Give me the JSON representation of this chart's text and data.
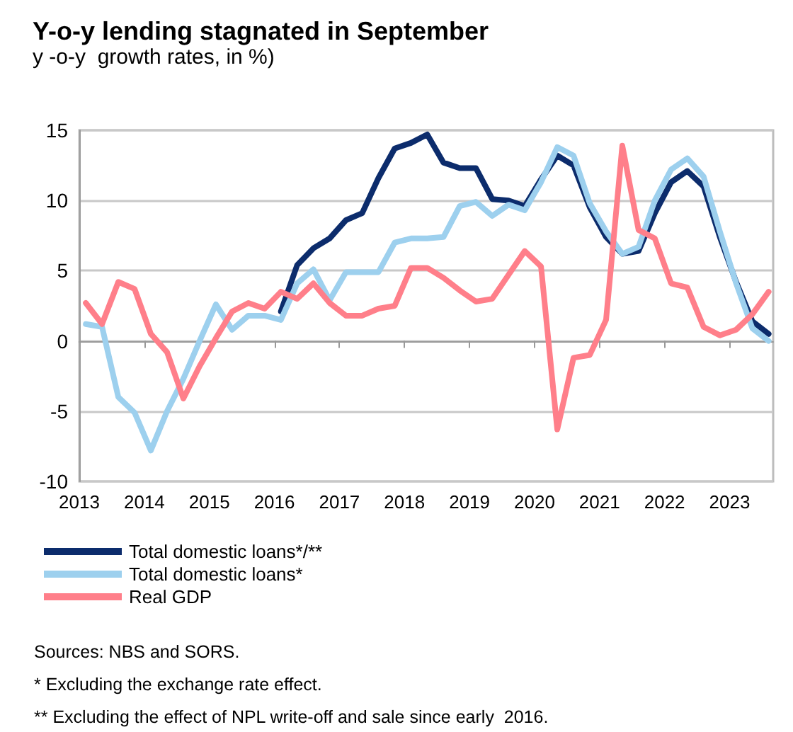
{
  "chart_data": {
    "type": "line",
    "title": "Y-o-y lending stagnated in September",
    "subtitle": "y -o-y  growth rates, in %)",
    "x": [
      2013.1,
      2013.35,
      2013.6,
      2013.85,
      2014.1,
      2014.35,
      2014.6,
      2014.85,
      2015.1,
      2015.35,
      2015.6,
      2015.85,
      2016.1,
      2016.35,
      2016.6,
      2016.85,
      2017.1,
      2017.35,
      2017.6,
      2017.85,
      2018.1,
      2018.35,
      2018.6,
      2018.85,
      2019.1,
      2019.35,
      2019.6,
      2019.85,
      2020.1,
      2020.35,
      2020.6,
      2020.85,
      2021.1,
      2021.35,
      2021.6,
      2021.85,
      2022.1,
      2022.35,
      2022.6,
      2022.85,
      2023.1,
      2023.35,
      2023.6
    ],
    "series": [
      {
        "name": "Total domestic loans*/**",
        "color": "#0c2c6c",
        "values": [
          null,
          null,
          null,
          null,
          null,
          null,
          null,
          null,
          null,
          null,
          null,
          null,
          2.1,
          5.4,
          6.6,
          7.3,
          8.6,
          9.1,
          11.6,
          13.7,
          14.1,
          14.7,
          12.7,
          12.3,
          12.3,
          10.1,
          10.0,
          9.6,
          11.5,
          13.2,
          12.5,
          9.5,
          7.4,
          6.2,
          6.4,
          9.1,
          11.3,
          12.1,
          11.0,
          7.4,
          4.2,
          1.4,
          0.5
        ]
      },
      {
        "name": "Total domestic loans*",
        "color": "#9dd0ee",
        "values": [
          1.2,
          1.0,
          -4.0,
          -5.1,
          -7.8,
          -5.0,
          -2.7,
          0.0,
          2.6,
          0.8,
          1.8,
          1.8,
          1.5,
          4.1,
          5.1,
          2.9,
          4.9,
          4.9,
          4.9,
          7.0,
          7.3,
          7.3,
          7.4,
          9.6,
          9.9,
          8.9,
          9.7,
          9.3,
          11.3,
          13.8,
          13.2,
          9.8,
          7.8,
          6.2,
          6.7,
          10.0,
          12.2,
          13.0,
          11.7,
          7.8,
          4.1,
          0.9,
          0.0
        ]
      },
      {
        "name": "Real GDP",
        "color": "#ff7f8a",
        "values": [
          2.7,
          1.2,
          4.2,
          3.7,
          0.5,
          -0.8,
          -4.1,
          -1.8,
          0.2,
          2.1,
          2.7,
          2.3,
          3.5,
          3.0,
          4.1,
          2.7,
          1.8,
          1.8,
          2.3,
          2.5,
          5.2,
          5.2,
          4.5,
          3.6,
          2.8,
          3.0,
          4.7,
          6.4,
          5.3,
          -6.3,
          -1.2,
          -1.0,
          1.5,
          13.9,
          7.9,
          7.3,
          4.1,
          3.8,
          1.0,
          0.4,
          0.8,
          1.9,
          3.5
        ]
      }
    ],
    "xlim": [
      2013,
      2023.67
    ],
    "xticks": [
      2013,
      2014,
      2015,
      2016,
      2017,
      2018,
      2019,
      2020,
      2021,
      2022,
      2023
    ],
    "ylim": [
      -10,
      15
    ],
    "yticks": [
      -10,
      -5,
      0,
      5,
      10,
      15
    ],
    "grid": "y",
    "legend": "bottom",
    "marker": "none",
    "line_style": "solid",
    "annotations": [
      "Sources: NBS and SORS.",
      "* Excluding the exchange rate effect.",
      "** Excluding the effect of NPL write-off and sale since early  2016."
    ]
  }
}
